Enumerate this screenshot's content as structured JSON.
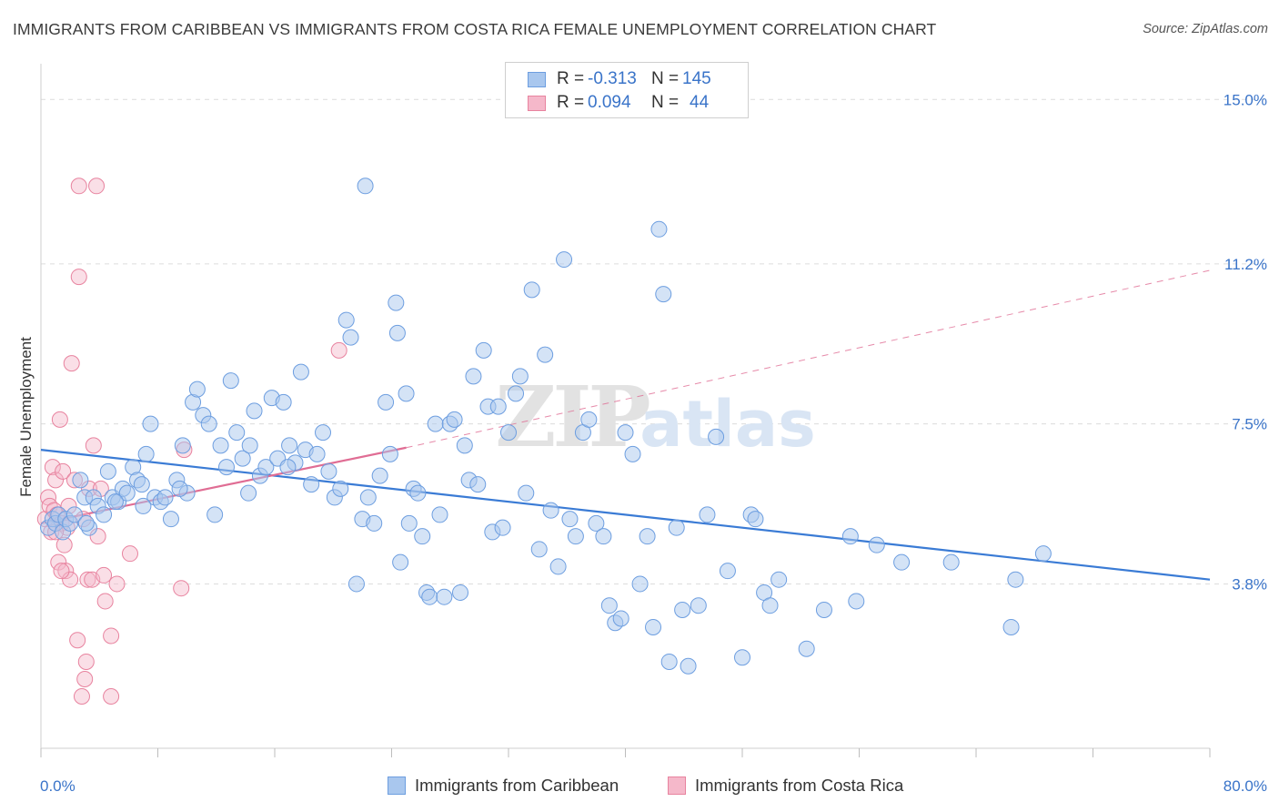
{
  "header": {
    "title": "IMMIGRANTS FROM CARIBBEAN VS IMMIGRANTS FROM COSTA RICA FEMALE UNEMPLOYMENT CORRELATION CHART",
    "source": "Source: ZipAtlas.com"
  },
  "watermark": {
    "zip": "ZIP",
    "atlas": "atlas"
  },
  "legend": {
    "rows": [
      {
        "r_label": "R = ",
        "r_value": "-0.313",
        "n_label": "N = ",
        "n_value": "145"
      },
      {
        "r_label": "R = ",
        "r_value": "0.094",
        "n_label": "N = ",
        "n_value": "44"
      }
    ]
  },
  "bottom_legend": {
    "caribbean": "Immigrants from Caribbean",
    "costa_rica": "Immigrants from Costa Rica"
  },
  "colors": {
    "caribbean_fill": "#a9c7ee",
    "caribbean_stroke": "#6d9ee0",
    "caribbean_line": "#3a7bd5",
    "costa_fill": "#f5b8ca",
    "costa_stroke": "#e8839f",
    "costa_line": "#e06d94",
    "axis_label": "#3a74c9",
    "grid": "#dcdcdc"
  },
  "chart_data": {
    "type": "scatter",
    "title": "IMMIGRANTS FROM CARIBBEAN VS IMMIGRANTS FROM COSTA RICA FEMALE UNEMPLOYMENT CORRELATION CHART",
    "xlabel": "",
    "ylabel": "Female Unemployment",
    "xlim": [
      0,
      80
    ],
    "ylim": [
      0,
      15.7
    ],
    "x_tick_labels": [
      "0.0%",
      "80.0%"
    ],
    "y_tick_values": [
      3.8,
      7.5,
      11.2,
      15.0
    ],
    "y_tick_labels": [
      "3.8%",
      "7.5%",
      "11.2%",
      "15.0%"
    ],
    "grid": true,
    "legend_position": "top-center",
    "series": [
      {
        "name": "Immigrants from Caribbean",
        "r": -0.313,
        "n": 145,
        "trend": {
          "x": [
            0,
            80
          ],
          "y": [
            6.9,
            3.9
          ]
        },
        "points": [
          [
            0.5,
            5.1
          ],
          [
            0.8,
            5.3
          ],
          [
            1.0,
            5.2
          ],
          [
            1.2,
            5.4
          ],
          [
            1.5,
            5.0
          ],
          [
            1.7,
            5.3
          ],
          [
            2.0,
            5.2
          ],
          [
            2.3,
            5.4
          ],
          [
            2.7,
            6.2
          ],
          [
            3.0,
            5.8
          ],
          [
            3.3,
            5.1
          ],
          [
            3.6,
            5.8
          ],
          [
            3.9,
            5.6
          ],
          [
            4.3,
            5.4
          ],
          [
            4.6,
            6.4
          ],
          [
            4.9,
            5.8
          ],
          [
            5.3,
            5.7
          ],
          [
            5.6,
            6.0
          ],
          [
            5.9,
            5.9
          ],
          [
            6.3,
            6.5
          ],
          [
            6.6,
            6.2
          ],
          [
            6.9,
            6.1
          ],
          [
            7.2,
            6.8
          ],
          [
            7.5,
            7.5
          ],
          [
            7.8,
            5.8
          ],
          [
            8.2,
            5.7
          ],
          [
            8.5,
            5.8
          ],
          [
            8.9,
            5.3
          ],
          [
            9.3,
            6.2
          ],
          [
            9.7,
            7.0
          ],
          [
            10.0,
            5.9
          ],
          [
            10.4,
            8.0
          ],
          [
            10.7,
            8.3
          ],
          [
            11.1,
            7.7
          ],
          [
            11.5,
            7.5
          ],
          [
            11.9,
            5.4
          ],
          [
            12.3,
            7.0
          ],
          [
            12.7,
            6.5
          ],
          [
            13.0,
            8.5
          ],
          [
            13.4,
            7.3
          ],
          [
            13.8,
            6.7
          ],
          [
            14.2,
            5.9
          ],
          [
            14.6,
            7.8
          ],
          [
            15.0,
            6.3
          ],
          [
            15.4,
            6.5
          ],
          [
            15.8,
            8.1
          ],
          [
            16.2,
            6.7
          ],
          [
            16.6,
            8.0
          ],
          [
            17.0,
            7.0
          ],
          [
            17.4,
            6.6
          ],
          [
            17.8,
            8.7
          ],
          [
            18.1,
            6.9
          ],
          [
            18.5,
            6.1
          ],
          [
            18.9,
            6.8
          ],
          [
            19.3,
            7.3
          ],
          [
            19.7,
            6.4
          ],
          [
            20.1,
            5.8
          ],
          [
            20.5,
            6.0
          ],
          [
            20.9,
            9.9
          ],
          [
            21.2,
            9.5
          ],
          [
            21.6,
            3.8
          ],
          [
            22.0,
            5.3
          ],
          [
            22.4,
            5.8
          ],
          [
            22.8,
            5.2
          ],
          [
            23.2,
            6.3
          ],
          [
            23.6,
            8.0
          ],
          [
            23.9,
            6.8
          ],
          [
            24.3,
            10.3
          ],
          [
            24.6,
            4.3
          ],
          [
            25.0,
            8.2
          ],
          [
            25.2,
            5.2
          ],
          [
            25.5,
            6.0
          ],
          [
            25.8,
            5.9
          ],
          [
            26.1,
            4.9
          ],
          [
            26.4,
            3.6
          ],
          [
            26.6,
            3.5
          ],
          [
            27.0,
            7.5
          ],
          [
            27.3,
            5.4
          ],
          [
            27.6,
            3.5
          ],
          [
            28.0,
            7.5
          ],
          [
            28.3,
            7.6
          ],
          [
            28.7,
            3.6
          ],
          [
            29.0,
            7.0
          ],
          [
            29.3,
            6.2
          ],
          [
            29.6,
            8.6
          ],
          [
            29.9,
            6.1
          ],
          [
            30.3,
            9.2
          ],
          [
            30.6,
            7.9
          ],
          [
            30.9,
            5.0
          ],
          [
            31.3,
            7.9
          ],
          [
            31.6,
            5.1
          ],
          [
            32.0,
            7.3
          ],
          [
            32.5,
            8.2
          ],
          [
            32.8,
            8.6
          ],
          [
            33.2,
            5.9
          ],
          [
            33.6,
            10.6
          ],
          [
            34.1,
            4.6
          ],
          [
            34.5,
            9.1
          ],
          [
            34.9,
            5.5
          ],
          [
            35.4,
            4.2
          ],
          [
            35.8,
            11.3
          ],
          [
            36.2,
            5.3
          ],
          [
            36.6,
            4.9
          ],
          [
            37.1,
            7.3
          ],
          [
            37.5,
            7.6
          ],
          [
            38.0,
            5.2
          ],
          [
            38.5,
            4.9
          ],
          [
            38.9,
            3.3
          ],
          [
            39.3,
            2.9
          ],
          [
            39.7,
            3.0
          ],
          [
            40.0,
            7.3
          ],
          [
            40.5,
            6.8
          ],
          [
            41.0,
            3.8
          ],
          [
            41.5,
            4.9
          ],
          [
            41.9,
            2.8
          ],
          [
            42.3,
            12.0
          ],
          [
            42.6,
            10.5
          ],
          [
            43.0,
            2.0
          ],
          [
            43.5,
            5.1
          ],
          [
            43.9,
            3.2
          ],
          [
            44.3,
            1.9
          ],
          [
            45.0,
            3.3
          ],
          [
            45.6,
            5.4
          ],
          [
            46.2,
            7.2
          ],
          [
            47.0,
            4.1
          ],
          [
            48.0,
            2.1
          ],
          [
            48.6,
            5.4
          ],
          [
            48.9,
            5.3
          ],
          [
            49.5,
            3.6
          ],
          [
            49.9,
            3.3
          ],
          [
            50.5,
            3.9
          ],
          [
            52.4,
            2.3
          ],
          [
            53.6,
            3.2
          ],
          [
            55.4,
            4.9
          ],
          [
            55.8,
            3.4
          ],
          [
            57.2,
            4.7
          ],
          [
            58.9,
            4.3
          ],
          [
            62.3,
            4.3
          ],
          [
            66.4,
            2.8
          ],
          [
            66.7,
            3.9
          ],
          [
            68.6,
            4.5
          ],
          [
            22.2,
            13.0
          ],
          [
            24.4,
            9.6
          ],
          [
            14.3,
            7.0
          ],
          [
            9.5,
            6.0
          ],
          [
            16.9,
            6.5
          ],
          [
            5.1,
            5.7
          ],
          [
            3.1,
            5.2
          ],
          [
            7.0,
            5.6
          ]
        ]
      },
      {
        "name": "Immigrants from Costa Rica",
        "r": 0.094,
        "n": 44,
        "trend": {
          "x": [
            0,
            25
          ],
          "y": [
            5.2,
            6.95
          ]
        },
        "trend_extension": {
          "x": [
            25,
            80
          ],
          "y": [
            6.95,
            11.05
          ]
        },
        "points": [
          [
            0.3,
            5.3
          ],
          [
            0.5,
            5.8
          ],
          [
            0.6,
            5.6
          ],
          [
            0.7,
            5.0
          ],
          [
            0.8,
            6.5
          ],
          [
            0.9,
            5.5
          ],
          [
            1.0,
            6.2
          ],
          [
            1.1,
            5.4
          ],
          [
            1.2,
            4.3
          ],
          [
            1.3,
            7.6
          ],
          [
            1.4,
            5.2
          ],
          [
            1.5,
            6.4
          ],
          [
            1.6,
            4.7
          ],
          [
            1.7,
            4.1
          ],
          [
            1.8,
            5.1
          ],
          [
            1.9,
            5.6
          ],
          [
            2.0,
            3.9
          ],
          [
            2.1,
            8.9
          ],
          [
            2.3,
            6.2
          ],
          [
            2.5,
            2.5
          ],
          [
            2.6,
            13.0
          ],
          [
            2.6,
            10.9
          ],
          [
            2.8,
            1.2
          ],
          [
            2.9,
            5.3
          ],
          [
            3.0,
            1.6
          ],
          [
            3.1,
            2.0
          ],
          [
            3.2,
            3.9
          ],
          [
            3.3,
            6.0
          ],
          [
            3.5,
            3.9
          ],
          [
            3.6,
            7.0
          ],
          [
            3.8,
            13.0
          ],
          [
            3.9,
            4.9
          ],
          [
            4.1,
            6.0
          ],
          [
            4.3,
            4.0
          ],
          [
            4.4,
            3.4
          ],
          [
            4.8,
            2.6
          ],
          [
            4.8,
            1.2
          ],
          [
            5.2,
            3.8
          ],
          [
            6.1,
            4.5
          ],
          [
            9.6,
            3.7
          ],
          [
            9.8,
            6.9
          ],
          [
            20.4,
            9.2
          ],
          [
            1.0,
            5.0
          ],
          [
            1.4,
            4.1
          ]
        ]
      }
    ]
  }
}
